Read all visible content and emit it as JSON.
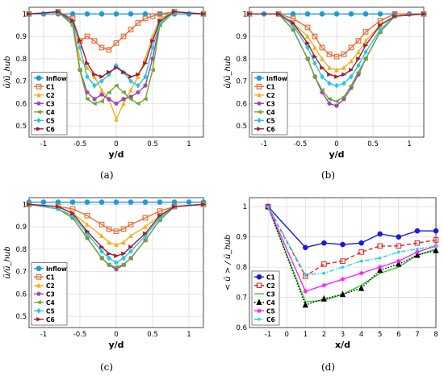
{
  "chart_data": [
    {
      "type": "line",
      "panel": "(a)",
      "xlabel": "y/d",
      "ylabel": "ū/ū_hub",
      "xlim": [
        -1.2,
        1.2
      ],
      "ylim": [
        0.45,
        1.03
      ],
      "xticks": [
        "-1",
        "-0.5",
        "0",
        "0.5",
        "1"
      ],
      "yticks": [
        "0.5",
        "0.6",
        "0.7",
        "0.8",
        "0.9",
        "1"
      ],
      "grid": true,
      "legend": "bottom-left",
      "series": [
        {
          "name": "Inflow",
          "color": "#1f9bd6",
          "marker": "circle",
          "x": [
            -1.2,
            -1.0,
            -0.8,
            -0.6,
            -0.4,
            -0.2,
            0,
            0.2,
            0.4,
            0.6,
            0.8,
            1.0,
            1.2
          ],
          "y": [
            1.0,
            1.0,
            1.0,
            1.0,
            1.0,
            1.0,
            1.0,
            1.0,
            1.0,
            1.0,
            1.0,
            1.0,
            1.0
          ]
        },
        {
          "name": "C1",
          "color": "#e8703a",
          "marker": "square",
          "x": [
            -1.2,
            -0.8,
            -0.6,
            -0.5,
            -0.4,
            -0.3,
            -0.2,
            -0.1,
            0,
            0.1,
            0.2,
            0.3,
            0.4,
            0.5,
            0.6,
            0.8,
            1.2
          ],
          "y": [
            1.0,
            1.01,
            0.98,
            0.88,
            0.9,
            0.88,
            0.85,
            0.84,
            0.87,
            0.9,
            0.93,
            0.96,
            0.98,
            0.99,
            1.0,
            1.01,
            1.0
          ]
        },
        {
          "name": "C2",
          "color": "#f2b01e",
          "marker": "triangle",
          "x": [
            -1.2,
            -0.8,
            -0.6,
            -0.5,
            -0.4,
            -0.3,
            -0.2,
            -0.1,
            0,
            0.1,
            0.2,
            0.3,
            0.4,
            0.5,
            0.6,
            0.8,
            1.2
          ],
          "y": [
            1.0,
            1.01,
            0.95,
            0.8,
            0.76,
            0.72,
            0.66,
            0.62,
            0.53,
            0.6,
            0.66,
            0.72,
            0.8,
            0.9,
            0.98,
            1.01,
            1.0
          ]
        },
        {
          "name": "C3",
          "color": "#9b3fb5",
          "marker": "star",
          "x": [
            -1.2,
            -0.8,
            -0.6,
            -0.5,
            -0.4,
            -0.3,
            -0.2,
            -0.1,
            0,
            0.1,
            0.2,
            0.3,
            0.4,
            0.5,
            0.6,
            0.8,
            1.2
          ],
          "y": [
            1.0,
            1.01,
            0.96,
            0.75,
            0.65,
            0.62,
            0.64,
            0.62,
            0.6,
            0.62,
            0.63,
            0.65,
            0.68,
            0.8,
            0.96,
            1.01,
            1.0
          ]
        },
        {
          "name": "C4",
          "color": "#6ea832",
          "marker": "triangle-left",
          "x": [
            -1.2,
            -0.8,
            -0.6,
            -0.5,
            -0.4,
            -0.3,
            -0.2,
            -0.1,
            0,
            0.1,
            0.2,
            0.3,
            0.4,
            0.5,
            0.6,
            0.8,
            1.2
          ],
          "y": [
            1.0,
            1.01,
            0.95,
            0.75,
            0.62,
            0.6,
            0.61,
            0.65,
            0.68,
            0.65,
            0.62,
            0.6,
            0.62,
            0.75,
            0.95,
            1.01,
            1.0
          ]
        },
        {
          "name": "C5",
          "color": "#22c7e8",
          "marker": "diamond",
          "x": [
            -1.2,
            -0.8,
            -0.6,
            -0.5,
            -0.4,
            -0.3,
            -0.2,
            -0.1,
            0,
            0.1,
            0.2,
            0.3,
            0.4,
            0.5,
            0.6,
            0.8,
            1.2
          ],
          "y": [
            1.0,
            1.01,
            0.96,
            0.85,
            0.72,
            0.68,
            0.7,
            0.73,
            0.77,
            0.74,
            0.7,
            0.68,
            0.72,
            0.85,
            0.96,
            1.01,
            1.0
          ]
        },
        {
          "name": "C6",
          "color": "#a11d2e",
          "marker": "triangle-right",
          "x": [
            -1.2,
            -0.8,
            -0.6,
            -0.5,
            -0.4,
            -0.3,
            -0.2,
            -0.1,
            0,
            0.1,
            0.2,
            0.3,
            0.4,
            0.5,
            0.6,
            0.8,
            1.2
          ],
          "y": [
            1.0,
            1.01,
            0.97,
            0.88,
            0.78,
            0.73,
            0.72,
            0.74,
            0.76,
            0.74,
            0.72,
            0.73,
            0.78,
            0.88,
            0.97,
            1.01,
            1.0
          ]
        }
      ]
    },
    {
      "type": "line",
      "panel": "(b)",
      "xlabel": "y/d",
      "ylabel": "ū/ū_hub",
      "xlim": [
        -1.2,
        1.2
      ],
      "ylim": [
        0.45,
        1.03
      ],
      "xticks": [
        "-1",
        "-0.5",
        "0",
        "0.5",
        "1"
      ],
      "yticks": [
        "0.5",
        "0.6",
        "0.7",
        "0.8",
        "0.9",
        "1"
      ],
      "grid": true,
      "legend": "bottom-left",
      "series": [
        {
          "name": "Inflow",
          "color": "#1f9bd6",
          "marker": "circle",
          "x": [
            -1.2,
            -1.0,
            -0.8,
            -0.6,
            -0.4,
            -0.2,
            0,
            0.2,
            0.4,
            0.6,
            0.8,
            1.0,
            1.2
          ],
          "y": [
            1.0,
            1.0,
            1.0,
            1.0,
            1.0,
            1.0,
            1.0,
            1.0,
            1.0,
            1.0,
            1.0,
            1.0,
            1.0
          ]
        },
        {
          "name": "C1",
          "color": "#e8703a",
          "marker": "square",
          "x": [
            -1.2,
            -0.8,
            -0.6,
            -0.4,
            -0.3,
            -0.2,
            -0.1,
            0,
            0.1,
            0.2,
            0.3,
            0.4,
            0.6,
            0.8,
            1.2
          ],
          "y": [
            1.0,
            1.0,
            0.98,
            0.94,
            0.9,
            0.85,
            0.82,
            0.81,
            0.82,
            0.85,
            0.88,
            0.92,
            0.97,
            1.0,
            1.0
          ]
        },
        {
          "name": "C2",
          "color": "#f2b01e",
          "marker": "triangle",
          "x": [
            -1.2,
            -0.8,
            -0.6,
            -0.4,
            -0.3,
            -0.2,
            -0.1,
            0,
            0.1,
            0.2,
            0.3,
            0.4,
            0.6,
            0.8,
            1.2
          ],
          "y": [
            1.0,
            1.0,
            0.96,
            0.9,
            0.85,
            0.8,
            0.76,
            0.75,
            0.76,
            0.79,
            0.83,
            0.88,
            0.95,
            0.99,
            1.0
          ]
        },
        {
          "name": "C3",
          "color": "#9b3fb5",
          "marker": "star",
          "x": [
            -1.2,
            -0.8,
            -0.6,
            -0.4,
            -0.3,
            -0.2,
            -0.1,
            0,
            0.1,
            0.2,
            0.3,
            0.4,
            0.6,
            0.8,
            1.2
          ],
          "y": [
            1.0,
            1.0,
            0.93,
            0.8,
            0.72,
            0.65,
            0.6,
            0.59,
            0.62,
            0.67,
            0.73,
            0.8,
            0.92,
            0.99,
            1.0
          ]
        },
        {
          "name": "C4",
          "color": "#6ea832",
          "marker": "triangle-left",
          "x": [
            -1.2,
            -0.8,
            -0.6,
            -0.4,
            -0.3,
            -0.2,
            -0.1,
            0,
            0.1,
            0.2,
            0.3,
            0.4,
            0.6,
            0.8,
            1.2
          ],
          "y": [
            1.0,
            1.0,
            0.93,
            0.8,
            0.72,
            0.66,
            0.62,
            0.61,
            0.63,
            0.68,
            0.74,
            0.8,
            0.92,
            0.99,
            1.0
          ]
        },
        {
          "name": "C5",
          "color": "#22c7e8",
          "marker": "diamond",
          "x": [
            -1.2,
            -0.8,
            -0.6,
            -0.4,
            -0.3,
            -0.2,
            -0.1,
            0,
            0.1,
            0.2,
            0.3,
            0.4,
            0.6,
            0.8,
            1.2
          ],
          "y": [
            1.0,
            1.0,
            0.95,
            0.85,
            0.78,
            0.72,
            0.69,
            0.68,
            0.69,
            0.72,
            0.77,
            0.83,
            0.93,
            0.99,
            1.0
          ]
        },
        {
          "name": "C6",
          "color": "#a11d2e",
          "marker": "triangle-right",
          "x": [
            -1.2,
            -0.8,
            -0.6,
            -0.4,
            -0.3,
            -0.2,
            -0.1,
            0,
            0.1,
            0.2,
            0.3,
            0.4,
            0.6,
            0.8,
            1.2
          ],
          "y": [
            1.0,
            1.0,
            0.96,
            0.87,
            0.81,
            0.76,
            0.73,
            0.72,
            0.73,
            0.75,
            0.8,
            0.86,
            0.95,
            0.99,
            1.0
          ]
        }
      ]
    },
    {
      "type": "line",
      "panel": "(c)",
      "xlabel": "y/d",
      "ylabel": "ū/ū_hub",
      "xlim": [
        -1.2,
        1.2
      ],
      "ylim": [
        0.45,
        1.03
      ],
      "xticks": [
        "-1",
        "-0.5",
        "0",
        "0.5",
        "1"
      ],
      "yticks": [
        "0.5",
        "0.6",
        "0.7",
        "0.8",
        "0.9",
        "1"
      ],
      "grid": true,
      "legend": "bottom-left",
      "series": [
        {
          "name": "Inflow",
          "color": "#1f9bd6",
          "marker": "circle",
          "x": [
            -1.2,
            -1.0,
            -0.8,
            -0.6,
            -0.4,
            -0.2,
            0,
            0.2,
            0.4,
            0.6,
            0.8,
            1.0,
            1.2
          ],
          "y": [
            1.01,
            1.01,
            1.01,
            1.01,
            1.01,
            1.01,
            1.01,
            1.01,
            1.01,
            1.01,
            1.01,
            1.01,
            1.01
          ]
        },
        {
          "name": "C1",
          "color": "#e8703a",
          "marker": "square",
          "x": [
            -1.2,
            -0.8,
            -0.6,
            -0.4,
            -0.2,
            -0.1,
            0,
            0.1,
            0.2,
            0.4,
            0.6,
            0.8,
            1.2
          ],
          "y": [
            1.0,
            0.99,
            0.98,
            0.95,
            0.91,
            0.89,
            0.88,
            0.89,
            0.91,
            0.94,
            0.97,
            0.99,
            1.0
          ]
        },
        {
          "name": "C2",
          "color": "#f2b01e",
          "marker": "triangle",
          "x": [
            -1.2,
            -0.8,
            -0.6,
            -0.4,
            -0.2,
            -0.1,
            0,
            0.1,
            0.2,
            0.4,
            0.6,
            0.8,
            1.2
          ],
          "y": [
            1.0,
            0.99,
            0.96,
            0.91,
            0.86,
            0.83,
            0.82,
            0.83,
            0.86,
            0.9,
            0.95,
            0.99,
            1.0
          ]
        },
        {
          "name": "C3",
          "color": "#9b3fb5",
          "marker": "star",
          "x": [
            -1.2,
            -0.8,
            -0.6,
            -0.4,
            -0.2,
            -0.1,
            0,
            0.1,
            0.2,
            0.4,
            0.6,
            0.8,
            1.2
          ],
          "y": [
            1.0,
            0.98,
            0.94,
            0.85,
            0.76,
            0.73,
            0.71,
            0.73,
            0.76,
            0.84,
            0.93,
            0.99,
            1.0
          ]
        },
        {
          "name": "C4",
          "color": "#6ea832",
          "marker": "triangle-left",
          "x": [
            -1.2,
            -0.8,
            -0.6,
            -0.4,
            -0.2,
            -0.1,
            0,
            0.1,
            0.2,
            0.4,
            0.6,
            0.8,
            1.2
          ],
          "y": [
            1.0,
            0.98,
            0.94,
            0.85,
            0.76,
            0.73,
            0.72,
            0.73,
            0.76,
            0.84,
            0.93,
            0.99,
            1.0
          ]
        },
        {
          "name": "C5",
          "color": "#22c7e8",
          "marker": "diamond",
          "x": [
            -1.2,
            -0.8,
            -0.6,
            -0.4,
            -0.2,
            -0.1,
            0,
            0.1,
            0.2,
            0.4,
            0.6,
            0.8,
            1.2
          ],
          "y": [
            1.0,
            0.98,
            0.95,
            0.87,
            0.79,
            0.76,
            0.74,
            0.76,
            0.79,
            0.86,
            0.94,
            0.99,
            1.0
          ]
        },
        {
          "name": "C6",
          "color": "#a11d2e",
          "marker": "triangle-right",
          "x": [
            -1.2,
            -0.8,
            -0.6,
            -0.4,
            -0.2,
            -0.1,
            0,
            0.1,
            0.2,
            0.4,
            0.6,
            0.8,
            1.2
          ],
          "y": [
            1.0,
            0.99,
            0.96,
            0.88,
            0.81,
            0.78,
            0.77,
            0.78,
            0.81,
            0.87,
            0.95,
            0.99,
            1.0
          ]
        }
      ]
    },
    {
      "type": "line",
      "panel": "(d)",
      "xlabel": "x/d",
      "ylabel": "< ū > / ū_hub",
      "xlim": [
        -2,
        8
      ],
      "ylim": [
        0.6,
        1.03
      ],
      "xticks": [
        "-1",
        "0",
        "1",
        "2",
        "3",
        "4",
        "5",
        "6",
        "7",
        "8"
      ],
      "yticks": [
        "0.6",
        "0.7",
        "0.8",
        "0.9",
        "1"
      ],
      "grid": true,
      "legend": "bottom-left",
      "series": [
        {
          "name": "C1",
          "color": "#1a1adb",
          "marker": "circle",
          "dash": "solid",
          "x": [
            -1,
            1,
            2,
            3,
            4,
            5,
            6,
            7,
            8
          ],
          "y": [
            1.0,
            0.865,
            0.88,
            0.875,
            0.88,
            0.91,
            0.9,
            0.92,
            0.92
          ]
        },
        {
          "name": "C2",
          "color": "#e02020",
          "marker": "square-open",
          "dash": "dashed",
          "x": [
            -1,
            1,
            2,
            3,
            4,
            5,
            6,
            7,
            8
          ],
          "y": [
            1.0,
            0.77,
            0.81,
            0.82,
            0.85,
            0.87,
            0.87,
            0.88,
            0.89
          ]
        },
        {
          "name": "C3",
          "color": "#1fd11f",
          "marker": "none",
          "dash": "solid",
          "x": [
            -1,
            1,
            2,
            3,
            4,
            5,
            6,
            7,
            8
          ],
          "y": [
            1.0,
            0.685,
            0.69,
            0.71,
            0.74,
            0.78,
            0.8,
            0.84,
            0.86
          ]
        },
        {
          "name": "C4",
          "color": "#000000",
          "marker": "triangle-open",
          "dash": "dotted",
          "x": [
            -1,
            1,
            2,
            3,
            4,
            5,
            6,
            7,
            8
          ],
          "y": [
            1.0,
            0.675,
            0.695,
            0.71,
            0.73,
            0.79,
            0.81,
            0.84,
            0.855
          ]
        },
        {
          "name": "C5",
          "color": "#ff20ff",
          "marker": "star",
          "dash": "solid",
          "x": [
            -1,
            1,
            2,
            3,
            4,
            5,
            6,
            7,
            8
          ],
          "y": [
            1.0,
            0.72,
            0.74,
            0.76,
            0.78,
            0.8,
            0.82,
            0.85,
            0.87
          ]
        },
        {
          "name": "C6",
          "color": "#20d8d8",
          "marker": "dot",
          "dash": "dashdot",
          "x": [
            -1,
            1,
            2,
            3,
            4,
            5,
            6,
            7,
            8
          ],
          "y": [
            1.0,
            0.775,
            0.78,
            0.8,
            0.82,
            0.83,
            0.85,
            0.86,
            0.87
          ]
        }
      ]
    }
  ]
}
